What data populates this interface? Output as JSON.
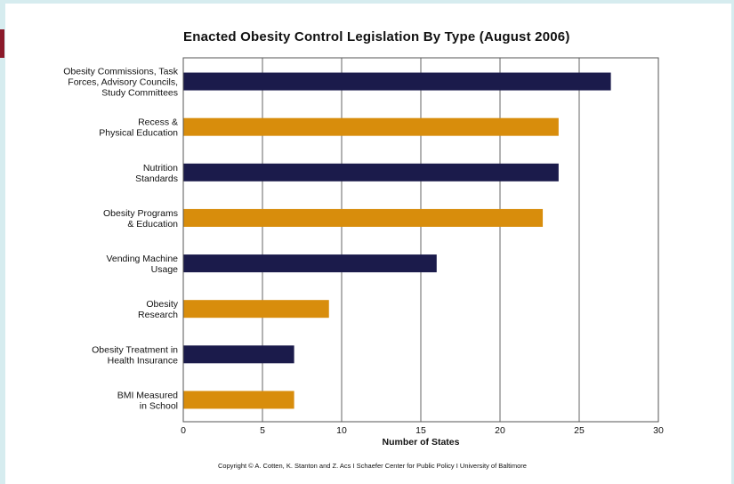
{
  "chart_data": {
    "type": "bar",
    "orientation": "horizontal",
    "title": "Enacted Obesity Control Legislation By Type (August 2006)",
    "xlabel": "Number of States",
    "ylabel": "",
    "xlim": [
      0,
      30
    ],
    "xticks": [
      "0",
      "5",
      "10",
      "15",
      "20",
      "25",
      "30"
    ],
    "grid": true,
    "categories": [
      [
        "Obesity Commissions, Task",
        "Forces, Advisory Councils,",
        "Study Committees"
      ],
      [
        "Recess &",
        "Physical Education"
      ],
      [
        "Nutrition",
        "Standards"
      ],
      [
        "Obesity Programs",
        "& Education"
      ],
      [
        "Vending Machine",
        "Usage"
      ],
      [
        "Obesity",
        "Research"
      ],
      [
        "Obesity Treatment in",
        "Health Insurance"
      ],
      [
        "BMI Measured",
        "in School"
      ]
    ],
    "values": [
      27,
      23.7,
      23.7,
      22.7,
      16,
      9.2,
      7,
      7
    ],
    "colors": [
      "#1b1b4b",
      "#d88d0c",
      "#1b1b4b",
      "#d88d0c",
      "#1b1b4b",
      "#d88d0c",
      "#1b1b4b",
      "#d88d0c"
    ]
  },
  "copyright": "Copyright © A. Cotten, K. Stanton and Z. Acs I Schaefer Center for Public Policy I University of Baltimore"
}
